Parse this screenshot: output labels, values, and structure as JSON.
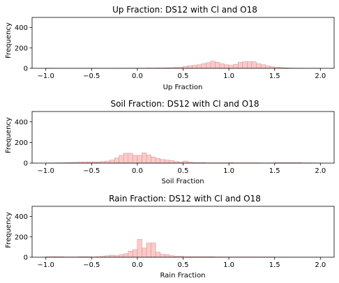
{
  "style": {
    "bar_fill": "#ffc9c9",
    "bar_edge": "#cc8f8f",
    "axis_color": "#000000"
  },
  "chart_data": [
    {
      "type": "bar",
      "title": "Up Fraction: DS12 with Cl and O18",
      "xlabel": "Up Fraction",
      "ylabel": "Frequency",
      "xlim": [
        -1.15,
        2.15
      ],
      "ylim": [
        0,
        500
      ],
      "xticks": [
        -1.0,
        -0.5,
        0.0,
        0.5,
        1.0,
        1.5,
        2.0
      ],
      "xtick_labels": [
        "−1.0",
        "−0.5",
        "0.0",
        "0.5",
        "1.0",
        "1.5",
        "2.0"
      ],
      "yticks": [
        0,
        200,
        400
      ],
      "ytick_labels": [
        "0",
        "200",
        "400"
      ],
      "bin_width": 0.05,
      "bins_start": [
        -1.0,
        -0.95,
        -0.9,
        -0.85,
        -0.8,
        -0.75,
        -0.7,
        -0.65,
        -0.6,
        -0.55,
        -0.5,
        -0.45,
        -0.4,
        -0.35,
        -0.3,
        -0.25,
        -0.2,
        -0.15,
        -0.1,
        -0.05,
        0.0,
        0.05,
        0.1,
        0.15,
        0.2,
        0.25,
        0.3,
        0.35,
        0.4,
        0.45,
        0.5,
        0.55,
        0.6,
        0.65,
        0.7,
        0.75,
        0.8,
        0.85,
        0.9,
        0.95,
        1.0,
        1.05,
        1.1,
        1.15,
        1.2,
        1.25,
        1.3,
        1.35,
        1.4,
        1.45,
        1.5,
        1.55,
        1.6,
        1.65,
        1.7,
        1.75,
        1.8,
        1.85,
        1.9,
        1.95
      ],
      "values": [
        2,
        1,
        1,
        1,
        1,
        1,
        1,
        1,
        1,
        1,
        1,
        1,
        1,
        1,
        1,
        1,
        2,
        2,
        2,
        2,
        2,
        2,
        3,
        3,
        4,
        4,
        6,
        6,
        10,
        10,
        20,
        25,
        30,
        35,
        45,
        55,
        70,
        60,
        45,
        35,
        30,
        40,
        60,
        65,
        65,
        65,
        45,
        35,
        25,
        15,
        10,
        8,
        5,
        3,
        2,
        2,
        1,
        1,
        1,
        1
      ]
    },
    {
      "type": "bar",
      "title": "Soil Fraction: DS12 with Cl and O18",
      "xlabel": "Soil Fraction",
      "ylabel": "Frequency",
      "xlim": [
        -1.15,
        2.15
      ],
      "ylim": [
        0,
        500
      ],
      "xticks": [
        -1.0,
        -0.5,
        0.0,
        0.5,
        1.0,
        1.5,
        2.0
      ],
      "xtick_labels": [
        "−1.0",
        "−0.5",
        "0.0",
        "0.5",
        "1.0",
        "1.5",
        "2.0"
      ],
      "yticks": [
        0,
        200,
        400
      ],
      "ytick_labels": [
        "0",
        "200",
        "400"
      ],
      "bin_width": 0.05,
      "bins_start": [
        -1.0,
        -0.95,
        -0.9,
        -0.85,
        -0.8,
        -0.75,
        -0.7,
        -0.65,
        -0.6,
        -0.55,
        -0.5,
        -0.45,
        -0.4,
        -0.35,
        -0.3,
        -0.25,
        -0.2,
        -0.15,
        -0.1,
        -0.05,
        0.0,
        0.05,
        0.1,
        0.15,
        0.2,
        0.25,
        0.3,
        0.35,
        0.4,
        0.45,
        0.5,
        0.55,
        0.6,
        0.65,
        0.7,
        0.75,
        0.8,
        0.85,
        0.9,
        0.95,
        1.0,
        1.05,
        1.1,
        1.15,
        1.2,
        1.25,
        1.3,
        1.35,
        1.4,
        1.45,
        1.5,
        1.55,
        1.6,
        1.65,
        1.7,
        1.75,
        1.8,
        1.85,
        1.9,
        1.95
      ],
      "values": [
        2,
        2,
        3,
        3,
        4,
        5,
        8,
        10,
        10,
        12,
        12,
        12,
        15,
        20,
        30,
        50,
        75,
        95,
        95,
        75,
        75,
        100,
        80,
        60,
        45,
        35,
        30,
        25,
        15,
        10,
        20,
        10,
        5,
        5,
        5,
        3,
        3,
        3,
        3,
        3,
        5,
        3,
        3,
        3,
        3,
        3,
        3,
        2,
        2,
        2,
        5,
        5,
        5,
        5,
        5,
        5,
        3,
        3,
        2,
        2
      ]
    },
    {
      "type": "bar",
      "title": "Rain Fraction: DS12 with Cl and O18",
      "xlabel": "Rain Fraction",
      "ylabel": "Frequency",
      "xlim": [
        -1.15,
        2.15
      ],
      "ylim": [
        0,
        500
      ],
      "xticks": [
        -1.0,
        -0.5,
        0.0,
        0.5,
        1.0,
        1.5,
        2.0
      ],
      "xtick_labels": [
        "−1.0",
        "−0.5",
        "0.0",
        "0.5",
        "1.0",
        "1.5",
        "2.0"
      ],
      "yticks": [
        0,
        200,
        400
      ],
      "ytick_labels": [
        "0",
        "200",
        "400"
      ],
      "bin_width": 0.05,
      "bins_start": [
        -1.0,
        -0.95,
        -0.9,
        -0.85,
        -0.8,
        -0.75,
        -0.7,
        -0.65,
        -0.6,
        -0.55,
        -0.5,
        -0.45,
        -0.4,
        -0.35,
        -0.3,
        -0.25,
        -0.2,
        -0.15,
        -0.1,
        -0.05,
        0.0,
        0.05,
        0.1,
        0.15,
        0.2,
        0.25,
        0.3,
        0.35,
        0.4,
        0.45,
        0.5,
        0.55,
        0.6,
        0.65,
        0.7,
        0.75,
        0.8,
        0.85,
        0.9,
        0.95,
        1.0,
        1.05,
        1.1,
        1.15,
        1.2,
        1.25,
        1.3,
        1.35,
        1.4,
        1.45,
        1.5,
        1.55,
        1.6,
        1.65,
        1.7,
        1.75,
        1.8,
        1.85,
        1.9,
        1.95
      ],
      "values": [
        5,
        5,
        5,
        5,
        3,
        3,
        3,
        5,
        5,
        5,
        3,
        5,
        10,
        15,
        20,
        15,
        25,
        35,
        60,
        75,
        175,
        90,
        140,
        140,
        50,
        30,
        25,
        15,
        10,
        10,
        5,
        5,
        5,
        5,
        5,
        5,
        5,
        3,
        3,
        3,
        3,
        3,
        3,
        3,
        3,
        3,
        3,
        3,
        3,
        3,
        1,
        1,
        1,
        1,
        1,
        1,
        1,
        1,
        1,
        1
      ]
    }
  ]
}
